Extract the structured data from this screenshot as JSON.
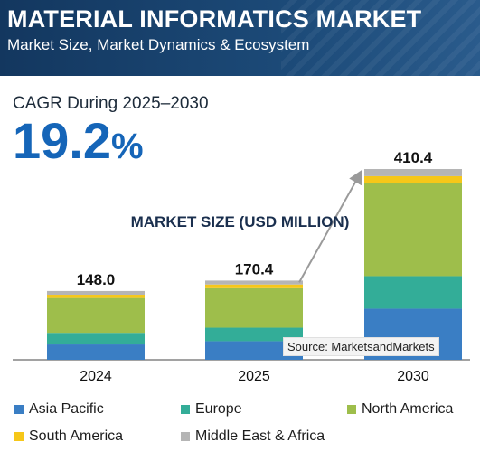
{
  "header": {
    "title": "MATERIAL INFORMATICS MARKET",
    "subtitle": "Market Size, Market Dynamics & Ecosystem"
  },
  "cagr": {
    "label": "CAGR During 2025–2030",
    "value": "19.2",
    "unit": "%"
  },
  "source": "Source: MarketsandMarkets",
  "chart_data": {
    "type": "bar",
    "stacked": true,
    "title": "MARKET SIZE (USD MILLION)",
    "categories": [
      "2024",
      "2025",
      "2030"
    ],
    "totals": [
      "148.0",
      "170.4",
      "410.4"
    ],
    "series": [
      {
        "name": "Asia Pacific",
        "color": "#3a7ec4",
        "values": [
          33,
          40,
          110
        ]
      },
      {
        "name": "Europe",
        "color": "#33ad98",
        "values": [
          25,
          29,
          70
        ]
      },
      {
        "name": "North America",
        "color": "#9ebe4b",
        "values": [
          75,
          85,
          200
        ]
      },
      {
        "name": "South America",
        "color": "#f6c719",
        "values": [
          7,
          8,
          15
        ]
      },
      {
        "name": "Middle East & Africa",
        "color": "#b5b5b5",
        "values": [
          8,
          8.4,
          15.4
        ]
      }
    ],
    "ylim": [
      0,
      410.4
    ],
    "grid": false,
    "legend_position": "bottom"
  }
}
